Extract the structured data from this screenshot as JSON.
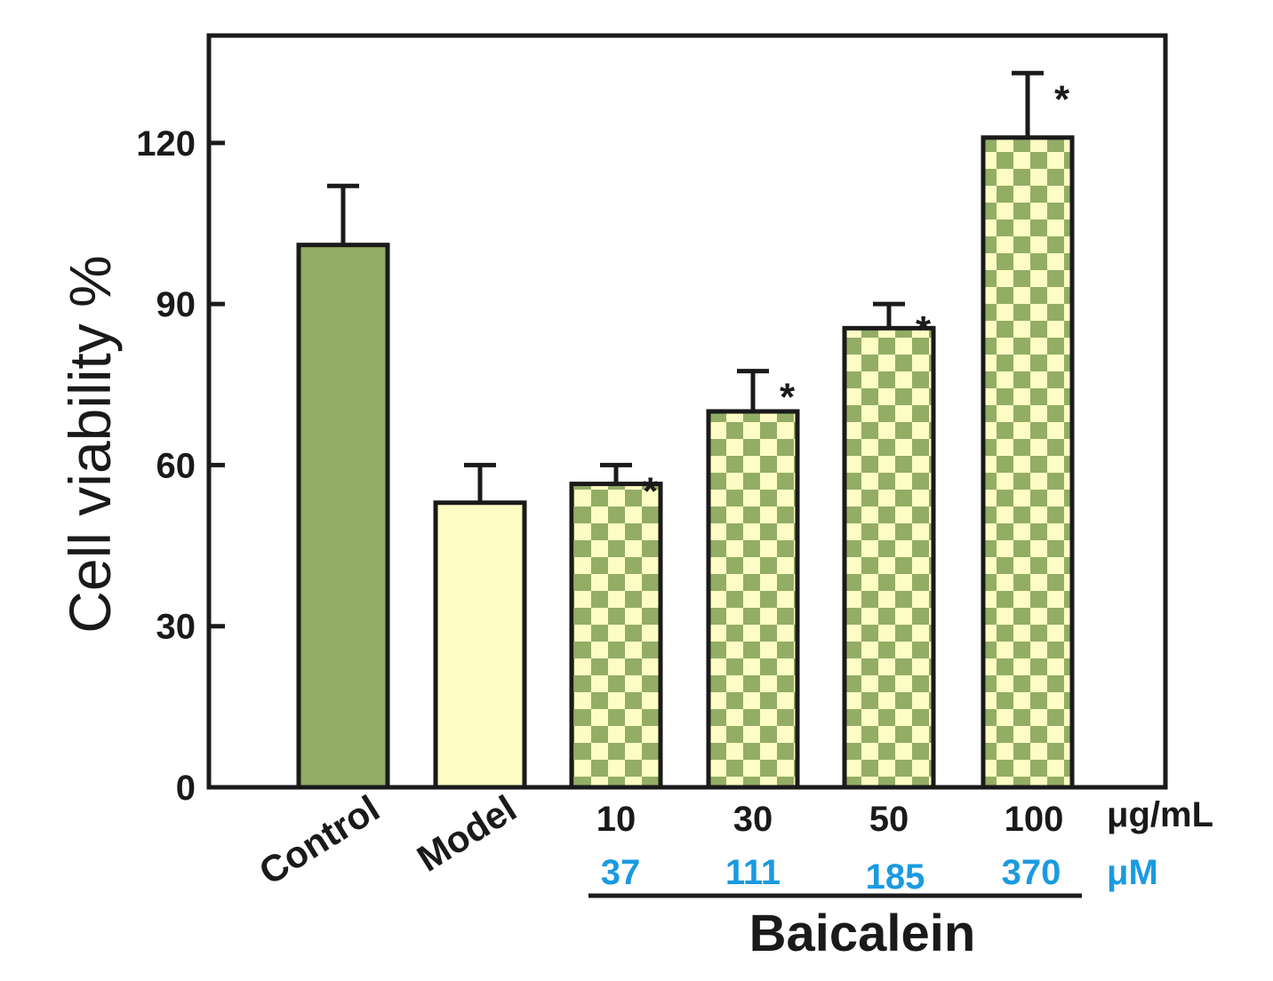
{
  "chart_data": {
    "type": "bar",
    "ylabel": "Cell viability %",
    "ylim": [
      0,
      140
    ],
    "yticks": [
      "0",
      "30",
      "60",
      "90",
      "120"
    ],
    "categories": [
      "Control",
      "Model",
      "10",
      "30",
      "50",
      "100"
    ],
    "values": [
      101,
      53,
      56.5,
      70,
      85.5,
      121
    ],
    "errors": [
      11,
      7,
      3.5,
      7.5,
      4.5,
      12
    ],
    "significance": [
      "",
      "",
      "*",
      "*",
      "*",
      "*"
    ],
    "fills": [
      "solid-green",
      "solid-yellow",
      "checker",
      "checker",
      "checker",
      "checker"
    ],
    "conc_unit_mass": "μg/mL",
    "conc_molar": [
      "37",
      "111",
      "185",
      "370"
    ],
    "conc_unit_molar": "μM",
    "group_label": "Baicalein",
    "grid": false,
    "colors": {
      "green": "#93ad65",
      "yellow": "#fdfcc4",
      "axis": "#1a1a1a",
      "molar_text": "#1b9ae0"
    }
  }
}
